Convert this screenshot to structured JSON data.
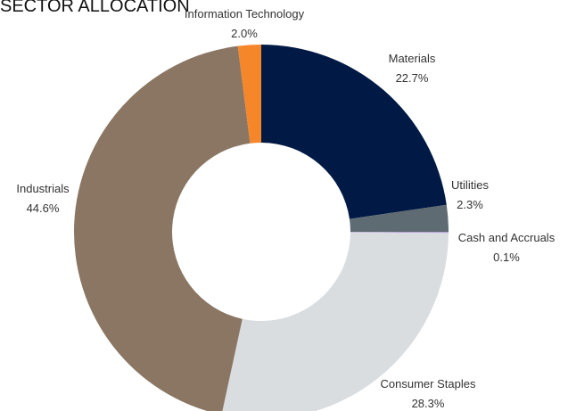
{
  "chart_data": {
    "type": "donut",
    "title": "SECTOR ALLOCATION",
    "categories": [
      "Materials",
      "Utilities",
      "Cash and Accruals",
      "Consumer Staples",
      "Industrials",
      "Information Technology"
    ],
    "values": [
      22.7,
      2.3,
      0.1,
      28.3,
      44.6,
      2.0
    ],
    "value_labels": [
      "22.7%",
      "2.3%",
      "0.1%",
      "28.3%",
      "44.6%",
      "2.0%"
    ],
    "colors": [
      "#001a45",
      "#5f6b73",
      "#b9a3d6",
      "#d9dde0",
      "#8a7663",
      "#f5872a"
    ]
  }
}
